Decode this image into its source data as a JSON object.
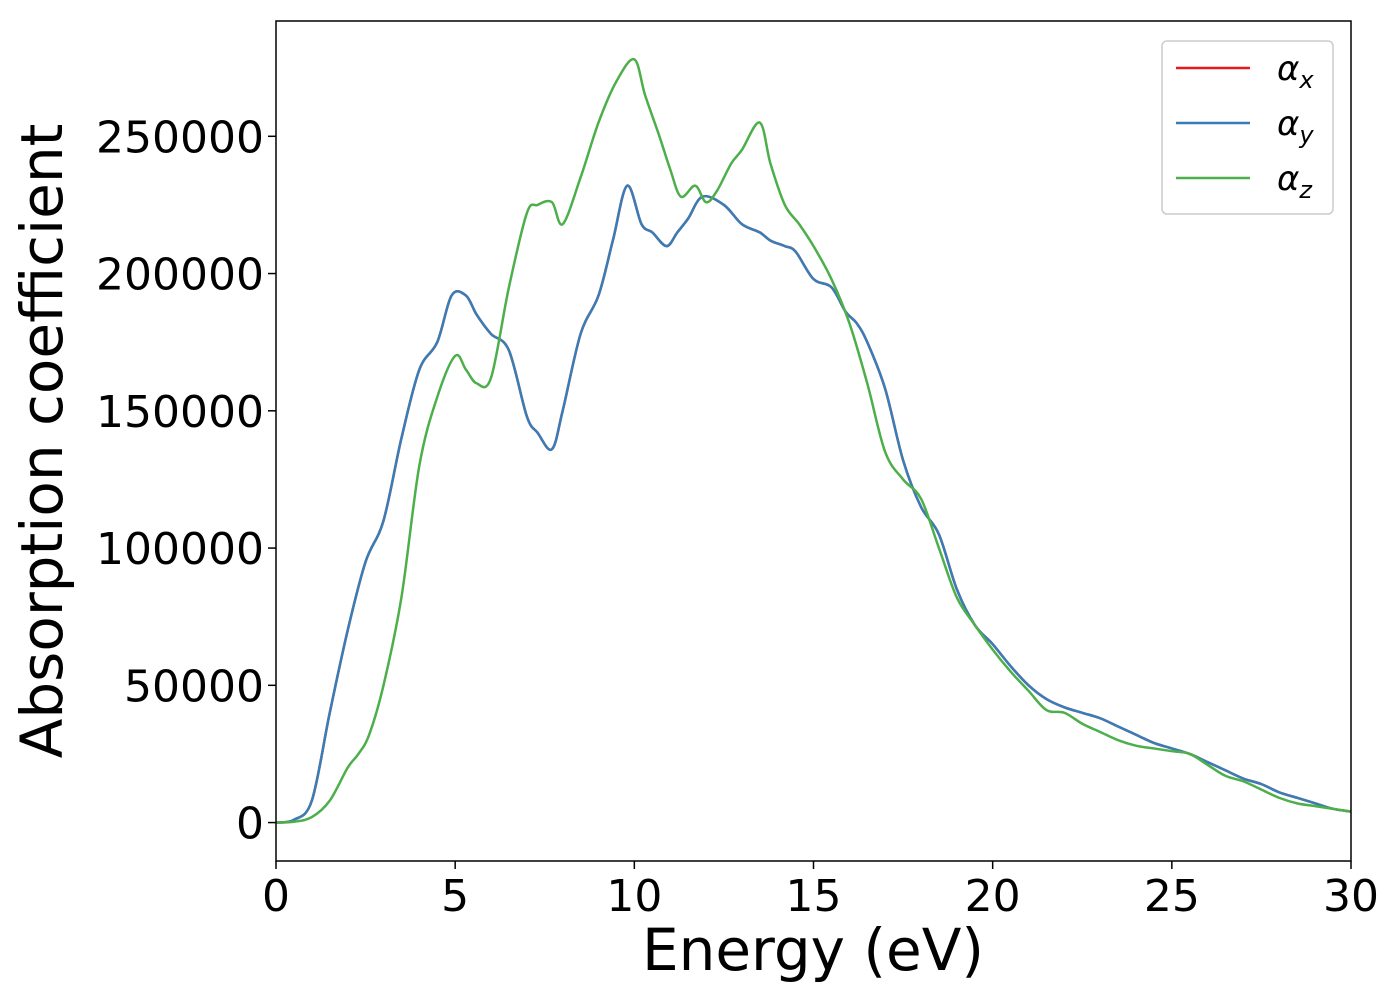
{
  "chart_data": {
    "type": "line",
    "xlabel": "Energy (eV)",
    "ylabel": "Absorption coefficient",
    "xlim": [
      0,
      30
    ],
    "ylim": [
      -14000,
      292000
    ],
    "xticks": [
      0,
      5,
      10,
      15,
      20,
      25,
      30
    ],
    "xtick_labels": [
      "0",
      "5",
      "10",
      "15",
      "20",
      "25",
      "30"
    ],
    "yticks": [
      0,
      50000,
      100000,
      150000,
      200000,
      250000
    ],
    "ytick_labels": [
      "0",
      "50000",
      "100000",
      "150000",
      "200000",
      "250000"
    ],
    "grid": false,
    "legend_position": "top-right",
    "series": [
      {
        "name": "αx",
        "symbol": "α",
        "subscript": "x",
        "color": "#e41a1c",
        "x": [
          0,
          0.5,
          1.0,
          1.5,
          2.0,
          2.5,
          3.0,
          3.5,
          4.0,
          4.5,
          4.9,
          5.3,
          5.6,
          6.0,
          6.5,
          7.0,
          7.3,
          7.7,
          8.0,
          8.5,
          9.0,
          9.4,
          9.8,
          10.2,
          10.5,
          10.9,
          11.2,
          11.5,
          11.9,
          12.5,
          13.0,
          13.5,
          13.8,
          14.2,
          14.5,
          15.0,
          15.5,
          15.9,
          16.2,
          16.5,
          17.0,
          17.5,
          18.0,
          18.5,
          19.0,
          19.5,
          20.0,
          20.5,
          21.0,
          21.5,
          22.0,
          22.5,
          23.0,
          23.5,
          24.0,
          24.5,
          25.0,
          25.5,
          26.0,
          26.5,
          27.0,
          27.5,
          28.0,
          28.5,
          29.0,
          29.5,
          30.0
        ],
        "y": [
          0,
          1000,
          8000,
          40000,
          70000,
          95000,
          110000,
          140000,
          165000,
          175000,
          192000,
          192000,
          185000,
          178000,
          172000,
          148000,
          142000,
          136000,
          150000,
          178000,
          192000,
          212000,
          232000,
          218000,
          215000,
          210000,
          215000,
          220000,
          228000,
          225000,
          218000,
          215000,
          212000,
          210000,
          208000,
          198000,
          195000,
          186000,
          182000,
          175000,
          158000,
          132000,
          115000,
          105000,
          85000,
          72000,
          65000,
          57000,
          50000,
          45000,
          42000,
          40000,
          38000,
          35000,
          32000,
          29000,
          27000,
          25000,
          22000,
          19000,
          16000,
          14000,
          11000,
          9000,
          7000,
          5000,
          4000
        ]
      },
      {
        "name": "αy",
        "symbol": "α",
        "subscript": "y",
        "color": "#377eb8",
        "x": [
          0,
          0.5,
          1.0,
          1.5,
          2.0,
          2.5,
          3.0,
          3.5,
          4.0,
          4.5,
          4.9,
          5.3,
          5.6,
          6.0,
          6.5,
          7.0,
          7.3,
          7.7,
          8.0,
          8.5,
          9.0,
          9.4,
          9.8,
          10.2,
          10.5,
          10.9,
          11.2,
          11.5,
          11.9,
          12.5,
          13.0,
          13.5,
          13.8,
          14.2,
          14.5,
          15.0,
          15.5,
          15.9,
          16.2,
          16.5,
          17.0,
          17.5,
          18.0,
          18.5,
          19.0,
          19.5,
          20.0,
          20.5,
          21.0,
          21.5,
          22.0,
          22.5,
          23.0,
          23.5,
          24.0,
          24.5,
          25.0,
          25.5,
          26.0,
          26.5,
          27.0,
          27.5,
          28.0,
          28.5,
          29.0,
          29.5,
          30.0
        ],
        "y": [
          0,
          1000,
          8000,
          40000,
          70000,
          95000,
          110000,
          140000,
          165000,
          175000,
          192000,
          192000,
          185000,
          178000,
          172000,
          148000,
          142000,
          136000,
          150000,
          178000,
          192000,
          212000,
          232000,
          218000,
          215000,
          210000,
          215000,
          220000,
          228000,
          225000,
          218000,
          215000,
          212000,
          210000,
          208000,
          198000,
          195000,
          186000,
          182000,
          175000,
          158000,
          132000,
          115000,
          105000,
          85000,
          72000,
          65000,
          57000,
          50000,
          45000,
          42000,
          40000,
          38000,
          35000,
          32000,
          29000,
          27000,
          25000,
          22000,
          19000,
          16000,
          14000,
          11000,
          9000,
          7000,
          5000,
          4000
        ]
      },
      {
        "name": "αz",
        "symbol": "α",
        "subscript": "z",
        "color": "#4daf4a",
        "x": [
          0,
          0.5,
          1.0,
          1.5,
          2.0,
          2.3,
          2.6,
          3.0,
          3.5,
          4.0,
          4.5,
          5.0,
          5.3,
          5.6,
          6.0,
          6.5,
          7.0,
          7.3,
          7.7,
          8.0,
          8.5,
          9.0,
          9.5,
          10.0,
          10.3,
          10.7,
          11.0,
          11.3,
          11.7,
          12.0,
          12.3,
          12.7,
          13.0,
          13.5,
          13.8,
          14.2,
          14.6,
          15.0,
          15.5,
          16.0,
          16.5,
          17.0,
          17.5,
          18.0,
          18.5,
          19.0,
          19.5,
          20.0,
          20.5,
          21.0,
          21.5,
          22.0,
          22.5,
          23.0,
          23.5,
          24.0,
          24.5,
          25.0,
          25.5,
          26.0,
          26.5,
          27.0,
          27.5,
          28.0,
          28.5,
          29.0,
          29.5,
          30.0
        ],
        "y": [
          0,
          300,
          2000,
          8000,
          20000,
          25000,
          32000,
          50000,
          82000,
          130000,
          155000,
          170000,
          165000,
          160000,
          162000,
          195000,
          222000,
          225000,
          226000,
          218000,
          235000,
          255000,
          270000,
          278000,
          265000,
          250000,
          238000,
          228000,
          232000,
          226000,
          230000,
          240000,
          245000,
          255000,
          240000,
          225000,
          218000,
          210000,
          198000,
          182000,
          160000,
          135000,
          125000,
          118000,
          100000,
          82000,
          72000,
          63000,
          55000,
          48000,
          41000,
          40000,
          36000,
          33000,
          30000,
          28000,
          27000,
          26000,
          25000,
          21000,
          17000,
          15000,
          12000,
          9000,
          7000,
          6000,
          5000,
          4000
        ]
      }
    ]
  }
}
